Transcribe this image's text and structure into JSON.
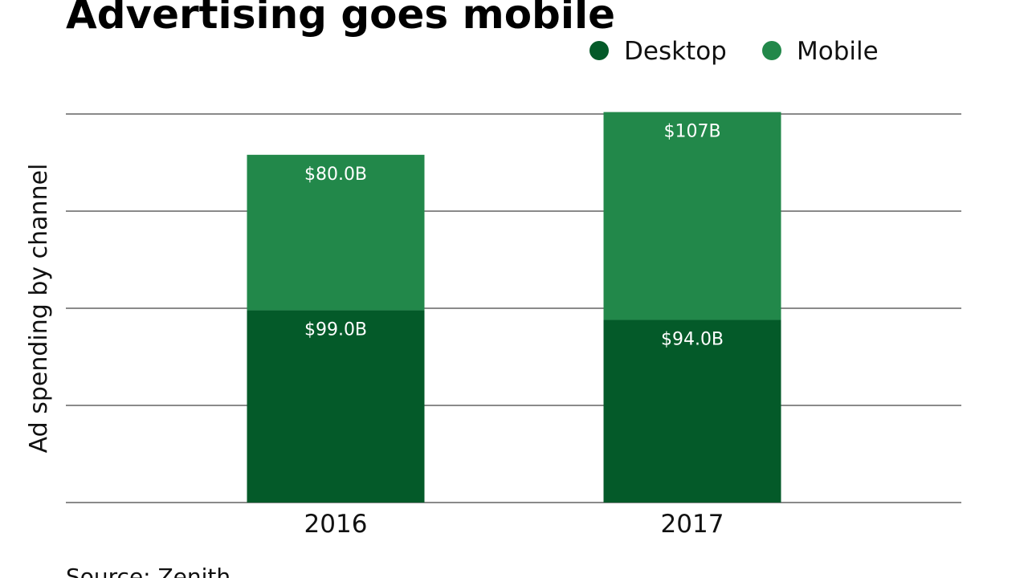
{
  "chart_data": {
    "type": "bar",
    "stacked": true,
    "title": "Advertising goes mobile",
    "xlabel": "",
    "ylabel": "Ad spending by channel",
    "categories": [
      "2016",
      "2017"
    ],
    "series": [
      {
        "name": "Desktop",
        "values": [
          99.0,
          94.0
        ],
        "labels": [
          "$99.0B",
          "$94.0B"
        ],
        "color": "#045a29"
      },
      {
        "name": "Mobile",
        "values": [
          80.0,
          107.0
        ],
        "labels": [
          "$80.0B",
          "$107B"
        ],
        "color": "#22884a"
      }
    ],
    "ylim": [
      0,
      200
    ],
    "grid": true,
    "gridlines": [
      0,
      50,
      100,
      150,
      200
    ],
    "legend_position": "top-right",
    "source": "Source: Zenith"
  }
}
